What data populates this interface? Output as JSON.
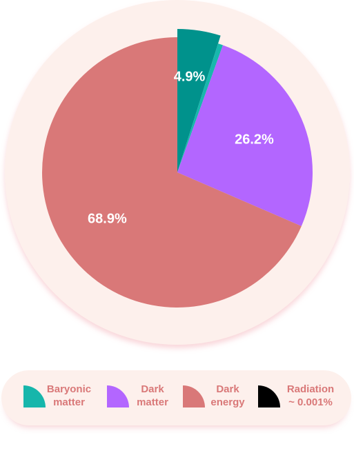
{
  "chart_data": {
    "type": "pie",
    "slices": [
      {
        "label": "Baryonic matter",
        "value": 4.9,
        "value_label": "4.9%",
        "color": "#00928c"
      },
      {
        "label": "Radiation ~ 0.001%",
        "value": 0.001,
        "value_label": "",
        "color": "#18b7ad"
      },
      {
        "label": "Dark matter",
        "value": 26.2,
        "value_label": "26.2%",
        "color": "#b366ff"
      },
      {
        "label": "Dark energy",
        "value": 68.9,
        "value_label": "68.9%",
        "color": "#d97878"
      }
    ],
    "background_color": "#fdf0ec",
    "label_color": "#ffffff",
    "legend_position": "bottom"
  },
  "legend": {
    "text_color": "#d97878",
    "items": [
      {
        "line1": "Baryonic",
        "line2": "matter",
        "swatch_color": "#16b6ab",
        "icon": "quarter-circle-icon"
      },
      {
        "line1": "Dark",
        "line2": "matter",
        "swatch_color": "#b366ff",
        "icon": "quarter-circle-icon"
      },
      {
        "line1": "Dark",
        "line2": "energy",
        "swatch_color": "#d97878",
        "icon": "quarter-circle-icon"
      },
      {
        "line1": "Radiation",
        "line2": "~ 0.001%",
        "swatch_color": "#000000",
        "icon": "quarter-circle-icon"
      }
    ]
  }
}
